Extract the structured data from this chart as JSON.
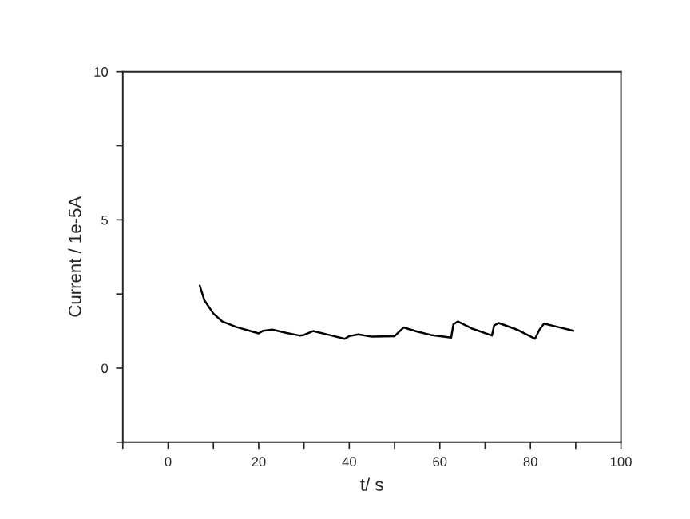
{
  "chart_data": {
    "type": "line",
    "xlabel": "t/ s",
    "ylabel": "Current / 1e-5A",
    "x": [
      7,
      8,
      10,
      12,
      15,
      18,
      20,
      21,
      23,
      26,
      29,
      30,
      32,
      35,
      39,
      40,
      42,
      45,
      50,
      52,
      55,
      58,
      62.5,
      63,
      64,
      67,
      71.5,
      72,
      73,
      77,
      81,
      82,
      83,
      86,
      89.5
    ],
    "series": [
      {
        "color": "#000000",
        "values": [
          2.78,
          2.29,
          1.84,
          1.57,
          1.39,
          1.26,
          1.17,
          1.26,
          1.3,
          1.19,
          1.1,
          1.12,
          1.25,
          1.14,
          0.99,
          1.08,
          1.14,
          1.06,
          1.08,
          1.37,
          1.23,
          1.12,
          1.03,
          1.48,
          1.57,
          1.34,
          1.1,
          1.44,
          1.52,
          1.3,
          0.99,
          1.3,
          1.5,
          1.39,
          1.26
        ]
      }
    ],
    "xlim": [
      -10,
      100
    ],
    "ylim": [
      -2.5,
      10
    ],
    "xticks": [
      {
        "value": -10,
        "label": null
      },
      0,
      {
        "value": 10,
        "label": null
      },
      20,
      {
        "value": 30,
        "label": null
      },
      40,
      {
        "value": 50,
        "label": null
      },
      60,
      {
        "value": 70,
        "label": null
      },
      80,
      {
        "value": 90,
        "label": null
      },
      100
    ],
    "yticks": [
      {
        "value": -2.5,
        "label": null
      },
      0,
      {
        "value": 2.5,
        "label": null
      },
      5,
      {
        "value": 7.5,
        "label": null
      },
      10
    ],
    "grid": false,
    "legend": false,
    "marker": "none",
    "line_style": "solid"
  }
}
